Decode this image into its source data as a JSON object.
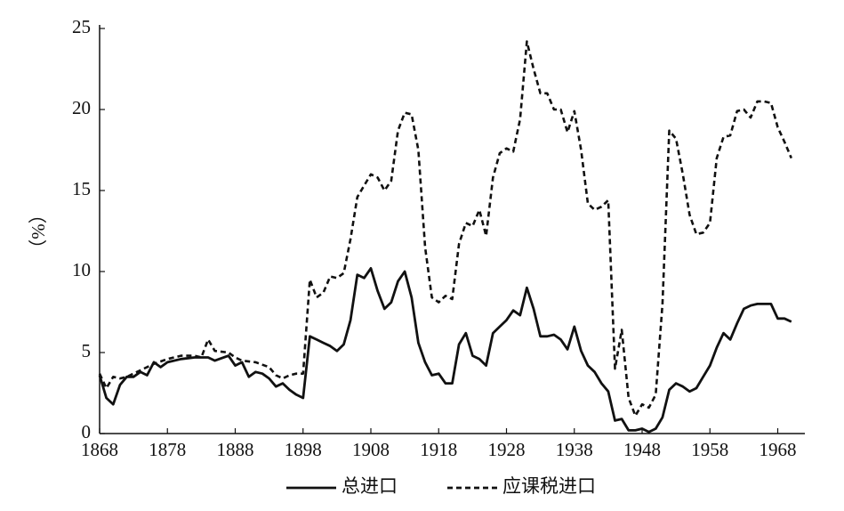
{
  "chart_data": {
    "type": "line",
    "ylabel": "（%）",
    "xlim": [
      1868,
      1972
    ],
    "xticks": [
      1868,
      1878,
      1888,
      1898,
      1908,
      1918,
      1928,
      1938,
      1948,
      1958,
      1968
    ],
    "ylim": [
      0,
      25
    ],
    "yticks": [
      0,
      5,
      10,
      15,
      20,
      25
    ],
    "grid": false,
    "legend": "bottom",
    "series": [
      {
        "name": "总进口",
        "color": "#111111",
        "style": "solid",
        "x": [
          1868,
          1869,
          1870,
          1871,
          1872,
          1873,
          1874,
          1875,
          1876,
          1877,
          1878,
          1880,
          1882,
          1884,
          1885,
          1887,
          1888,
          1889,
          1890,
          1891,
          1892,
          1893,
          1894,
          1895,
          1896,
          1897,
          1898,
          1899,
          1900,
          1901,
          1902,
          1903,
          1904,
          1905,
          1906,
          1907,
          1908,
          1909,
          1910,
          1911,
          1912,
          1913,
          1914,
          1915,
          1916,
          1917,
          1918,
          1919,
          1920,
          1921,
          1922,
          1923,
          1924,
          1925,
          1926,
          1927,
          1928,
          1929,
          1930,
          1931,
          1932,
          1933,
          1934,
          1935,
          1936,
          1937,
          1938,
          1939,
          1940,
          1941,
          1942,
          1943,
          1944,
          1945,
          1946,
          1947,
          1948,
          1949,
          1950,
          1951,
          1952,
          1953,
          1954,
          1955,
          1956,
          1957,
          1958,
          1959,
          1960,
          1961,
          1962,
          1963,
          1964,
          1965,
          1966,
          1967,
          1968,
          1969,
          1970
        ],
        "values": [
          3.6,
          2.2,
          1.8,
          3.0,
          3.5,
          3.5,
          3.8,
          3.6,
          4.4,
          4.1,
          4.4,
          4.6,
          4.7,
          4.7,
          4.5,
          4.8,
          4.2,
          4.4,
          3.5,
          3.8,
          3.7,
          3.4,
          2.9,
          3.1,
          2.7,
          2.4,
          2.2,
          6.0,
          5.8,
          5.6,
          5.4,
          5.1,
          5.5,
          7.0,
          9.8,
          9.6,
          10.2,
          8.8,
          7.7,
          8.1,
          9.4,
          10.0,
          8.4,
          5.6,
          4.4,
          3.6,
          3.7,
          3.1,
          3.1,
          5.5,
          6.2,
          4.8,
          4.6,
          4.2,
          6.2,
          6.6,
          7.0,
          7.6,
          7.3,
          9.0,
          7.7,
          6.0,
          6.0,
          6.1,
          5.8,
          5.2,
          6.6,
          5.1,
          4.2,
          3.8,
          3.1,
          2.6,
          0.8,
          0.9,
          0.2,
          0.2,
          0.3,
          0.1,
          0.3,
          1.0,
          2.7,
          3.1,
          2.9,
          2.6,
          2.8,
          3.5,
          4.2,
          5.3,
          6.2,
          5.8,
          6.8,
          7.7,
          7.9,
          8.0,
          8.0,
          8.0,
          7.1,
          7.1,
          6.9
        ]
      },
      {
        "name": "应课税进口",
        "color": "#111111",
        "style": "dashed",
        "x": [
          1868,
          1869,
          1870,
          1871,
          1872,
          1874,
          1876,
          1878,
          1880,
          1882,
          1883,
          1884,
          1885,
          1887,
          1888,
          1889,
          1891,
          1893,
          1894,
          1895,
          1896,
          1897,
          1898,
          1899,
          1900,
          1901,
          1902,
          1903,
          1904,
          1905,
          1906,
          1907,
          1908,
          1909,
          1910,
          1911,
          1912,
          1913,
          1914,
          1915,
          1916,
          1917,
          1918,
          1919,
          1920,
          1921,
          1922,
          1923,
          1924,
          1925,
          1926,
          1927,
          1928,
          1929,
          1930,
          1931,
          1932,
          1933,
          1934,
          1935,
          1936,
          1937,
          1938,
          1939,
          1940,
          1941,
          1942,
          1943,
          1944,
          1945,
          1946,
          1947,
          1948,
          1949,
          1950,
          1951,
          1952,
          1953,
          1954,
          1955,
          1956,
          1957,
          1958,
          1959,
          1960,
          1961,
          1962,
          1963,
          1964,
          1965,
          1966,
          1967,
          1968,
          1969,
          1970
        ],
        "values": [
          3.7,
          2.8,
          3.5,
          3.4,
          3.5,
          3.9,
          4.3,
          4.6,
          4.8,
          4.8,
          4.7,
          5.8,
          5.1,
          5.0,
          4.7,
          4.5,
          4.4,
          4.1,
          3.6,
          3.4,
          3.6,
          3.7,
          3.7,
          9.5,
          8.4,
          8.7,
          9.7,
          9.6,
          9.9,
          12.0,
          14.6,
          15.3,
          16.0,
          15.8,
          15.0,
          15.6,
          18.7,
          19.8,
          19.7,
          17.5,
          11.5,
          8.4,
          8.1,
          8.5,
          8.3,
          11.7,
          13.0,
          12.8,
          13.8,
          12.2,
          15.8,
          17.3,
          17.6,
          17.4,
          19.4,
          24.2,
          22.5,
          21.0,
          21.0,
          20.0,
          20.0,
          18.6,
          19.9,
          17.5,
          14.2,
          13.8,
          14.0,
          14.4,
          4.0,
          6.4,
          2.2,
          1.1,
          1.8,
          1.6,
          2.4,
          8.0,
          18.7,
          18.2,
          16.0,
          13.5,
          12.3,
          12.4,
          13.0,
          17.0,
          18.3,
          18.4,
          19.9,
          20.0,
          19.5,
          20.5,
          20.5,
          20.4,
          18.9,
          18.0,
          17.0
        ]
      }
    ]
  }
}
